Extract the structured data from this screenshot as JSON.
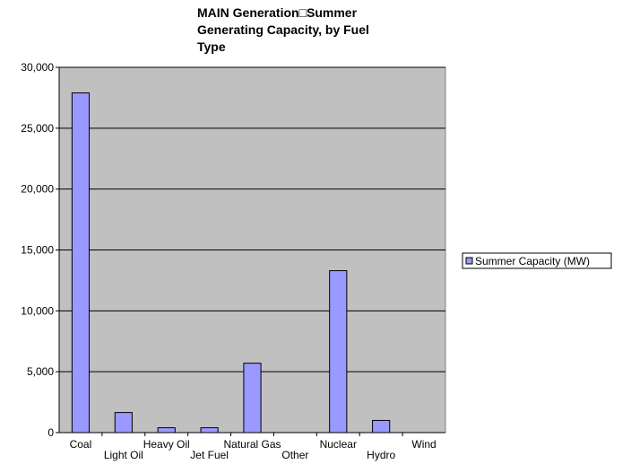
{
  "chart_data": {
    "type": "bar",
    "title_lines": [
      "MAIN Generation□Summer",
      "Generating Capacity, by Fuel",
      "Type"
    ],
    "categories": [
      "Coal",
      "Light Oil",
      "Heavy Oil",
      "Jet Fuel",
      "Natural Gas",
      "Other",
      "Nuclear",
      "Hydro",
      "Wind"
    ],
    "series": [
      {
        "name": "Summer Capacity (MW)",
        "values": [
          27900,
          1650,
          400,
          400,
          5700,
          0,
          13300,
          1000,
          0
        ],
        "color": "#9999ff"
      }
    ],
    "ylim": [
      0,
      30000
    ],
    "yticks": [
      0,
      5000,
      10000,
      15000,
      20000,
      25000,
      30000
    ],
    "ytick_labels": [
      "0",
      "5,000",
      "10,000",
      "15,000",
      "20,000",
      "25,000",
      "30,000"
    ],
    "grid": true,
    "plot_background": "#c0c0c0",
    "legend_position": "right"
  }
}
